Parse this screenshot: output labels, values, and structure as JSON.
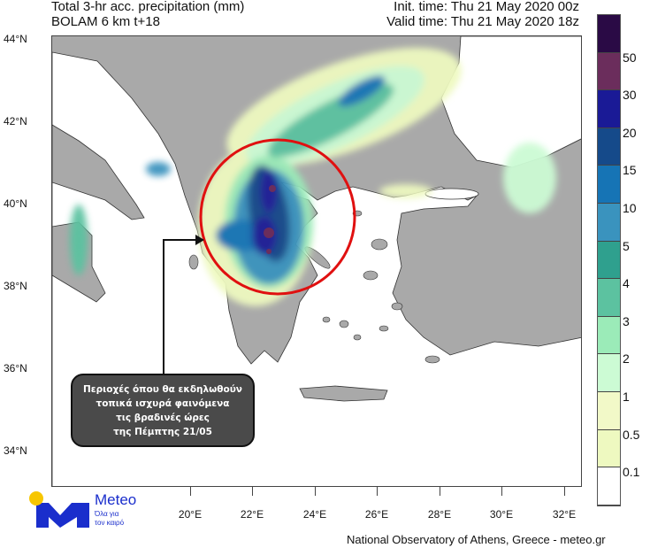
{
  "header": {
    "title": "Total 3-hr acc. precipitation (mm)",
    "model": "BOLAM 6 km t+18",
    "init_time": "Init. time: Thu 21 May 2020 00z",
    "valid_time": "Valid time: Thu 21 May 2020 18z"
  },
  "axes": {
    "lat_labels": [
      "44°N",
      "42°N",
      "40°N",
      "38°N",
      "36°N",
      "34°N"
    ],
    "lon_labels": [
      "20°E",
      "22°E",
      "24°E",
      "26°E",
      "28°E",
      "30°E",
      "32°E"
    ]
  },
  "legend": {
    "labels": [
      "50",
      "30",
      "20",
      "15",
      "10",
      "5",
      "4",
      "3",
      "2",
      "1",
      "0.5",
      "0.1"
    ],
    "colors": [
      "#2a0a45",
      "#6b2d5c",
      "#1a1a96",
      "#154a8a",
      "#1674b5",
      "#3a93be",
      "#2fa08e",
      "#5cc2a0",
      "#9bebb8",
      "#ccfbd4",
      "#f2f9c8",
      "#eef9c0",
      "#ffffff"
    ]
  },
  "annotation": {
    "lines": [
      "Περιοχές όπου θα εκδηλωθούν",
      "τοπικά ισχυρά φαινόμενα",
      "τις βραδινές ώρες",
      "της Πέμπτης 21/05"
    ],
    "circle_color": "#e01010"
  },
  "logo": {
    "name": "Meteo",
    "tagline1": "Όλα για",
    "tagline2": "τον καιρό",
    "brand_color": "#1a2ecc",
    "sun_color": "#f7c600"
  },
  "footer": {
    "credit": "National Observatory of Athens, Greece - meteo.gr"
  },
  "colors": {
    "land": "#a9a9a9",
    "sea": "#ffffff"
  }
}
